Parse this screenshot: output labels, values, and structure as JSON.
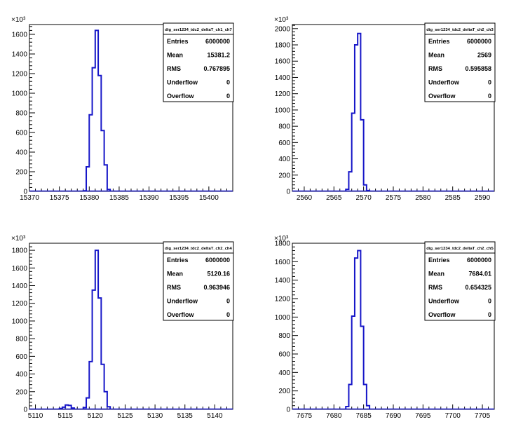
{
  "chart_data": [
    {
      "type": "histogram",
      "stats": {
        "title": "dig_ser1234_tdc2_deltaT_ch1_ch7",
        "rows": [
          {
            "label": "Entries",
            "value": "6000000"
          },
          {
            "label": "Mean",
            "value": "15381.2"
          },
          {
            "label": "RMS",
            "value": "0.767895"
          },
          {
            "label": "Underflow",
            "value": "0"
          },
          {
            "label": "Overflow",
            "value": "0"
          }
        ]
      },
      "xlim": [
        15370,
        15404
      ],
      "ylim": [
        0,
        1700
      ],
      "xticks": [
        15370,
        15375,
        15380,
        15385,
        15390,
        15395,
        15400
      ],
      "yticks": [
        0,
        200,
        400,
        600,
        800,
        1000,
        1200,
        1400,
        1600
      ],
      "ylabel_exponent": "×10³",
      "bins": [
        {
          "x0": 15379.0,
          "x1": 15379.5,
          "y": 5
        },
        {
          "x0": 15379.5,
          "x1": 15380.0,
          "y": 250
        },
        {
          "x0": 15380.0,
          "x1": 15380.5,
          "y": 780
        },
        {
          "x0": 15380.5,
          "x1": 15381.0,
          "y": 1260
        },
        {
          "x0": 15381.0,
          "x1": 15381.5,
          "y": 1640
        },
        {
          "x0": 15381.5,
          "x1": 15382.0,
          "y": 1180
        },
        {
          "x0": 15382.0,
          "x1": 15382.5,
          "y": 620
        },
        {
          "x0": 15382.5,
          "x1": 15383.0,
          "y": 270
        },
        {
          "x0": 15383.0,
          "x1": 15383.5,
          "y": 20
        }
      ]
    },
    {
      "type": "histogram",
      "stats": {
        "title": "dig_ser1234_tdc2_deltaT_ch2_ch3",
        "rows": [
          {
            "label": "Entries",
            "value": "6000000"
          },
          {
            "label": "Mean",
            "value": "2569"
          },
          {
            "label": "RMS",
            "value": "0.595858"
          },
          {
            "label": "Underflow",
            "value": "0"
          },
          {
            "label": "Overflow",
            "value": "0"
          }
        ]
      },
      "xlim": [
        2558,
        2592
      ],
      "ylim": [
        0,
        2050
      ],
      "xticks": [
        2560,
        2565,
        2570,
        2575,
        2580,
        2585,
        2590
      ],
      "yticks": [
        0,
        200,
        400,
        600,
        800,
        1000,
        1200,
        1400,
        1600,
        1800,
        2000
      ],
      "ylabel_exponent": "×10³",
      "bins": [
        {
          "x0": 2567.0,
          "x1": 2567.5,
          "y": 25
        },
        {
          "x0": 2567.5,
          "x1": 2568.0,
          "y": 240
        },
        {
          "x0": 2568.0,
          "x1": 2568.5,
          "y": 960
        },
        {
          "x0": 2568.5,
          "x1": 2569.0,
          "y": 1800
        },
        {
          "x0": 2569.0,
          "x1": 2569.5,
          "y": 1940
        },
        {
          "x0": 2569.5,
          "x1": 2570.0,
          "y": 880
        },
        {
          "x0": 2570.0,
          "x1": 2570.5,
          "y": 80
        },
        {
          "x0": 2570.5,
          "x1": 2571.0,
          "y": 10
        }
      ]
    },
    {
      "type": "histogram",
      "stats": {
        "title": "dig_ser1234_tdc2_deltaT_ch2_ch4",
        "rows": [
          {
            "label": "Entries",
            "value": "6000000"
          },
          {
            "label": "Mean",
            "value": "5120.16"
          },
          {
            "label": "RMS",
            "value": "0.963946"
          },
          {
            "label": "Underflow",
            "value": "0"
          },
          {
            "label": "Overflow",
            "value": "0"
          }
        ]
      },
      "xlim": [
        5109,
        5143
      ],
      "ylim": [
        0,
        1880
      ],
      "xticks": [
        5110,
        5115,
        5120,
        5125,
        5130,
        5135,
        5140
      ],
      "yticks": [
        0,
        200,
        400,
        600,
        800,
        1000,
        1200,
        1400,
        1600,
        1800
      ],
      "ylabel_exponent": "×10³",
      "bins": [
        {
          "x0": 5114.0,
          "x1": 5114.5,
          "y": 10
        },
        {
          "x0": 5114.5,
          "x1": 5115.0,
          "y": 25
        },
        {
          "x0": 5115.0,
          "x1": 5115.5,
          "y": 50
        },
        {
          "x0": 5115.5,
          "x1": 5116.0,
          "y": 45
        },
        {
          "x0": 5116.0,
          "x1": 5116.5,
          "y": 15
        },
        {
          "x0": 5118.0,
          "x1": 5118.5,
          "y": 20
        },
        {
          "x0": 5118.5,
          "x1": 5119.0,
          "y": 130
        },
        {
          "x0": 5119.0,
          "x1": 5119.5,
          "y": 540
        },
        {
          "x0": 5119.5,
          "x1": 5120.0,
          "y": 1350
        },
        {
          "x0": 5120.0,
          "x1": 5120.5,
          "y": 1800
        },
        {
          "x0": 5120.5,
          "x1": 5121.0,
          "y": 1260
        },
        {
          "x0": 5121.0,
          "x1": 5121.5,
          "y": 510
        },
        {
          "x0": 5121.5,
          "x1": 5122.0,
          "y": 200
        },
        {
          "x0": 5122.0,
          "x1": 5122.5,
          "y": 30
        }
      ]
    },
    {
      "type": "histogram",
      "stats": {
        "title": "dig_ser1234_tdc2_deltaT_ch2_ch5",
        "rows": [
          {
            "label": "Entries",
            "value": "6000000"
          },
          {
            "label": "Mean",
            "value": "7684.01"
          },
          {
            "label": "RMS",
            "value": "0.654325"
          },
          {
            "label": "Underflow",
            "value": "0"
          },
          {
            "label": "Overflow",
            "value": "0"
          }
        ]
      },
      "xlim": [
        7673,
        7707
      ],
      "ylim": [
        0,
        1800
      ],
      "xticks": [
        7675,
        7680,
        7685,
        7690,
        7695,
        7700,
        7705
      ],
      "yticks": [
        0,
        200,
        400,
        600,
        800,
        1000,
        1200,
        1400,
        1600,
        1800
      ],
      "ylabel_exponent": "×10³",
      "bins": [
        {
          "x0": 7682.0,
          "x1": 7682.5,
          "y": 30
        },
        {
          "x0": 7682.5,
          "x1": 7683.0,
          "y": 270
        },
        {
          "x0": 7683.0,
          "x1": 7683.5,
          "y": 1010
        },
        {
          "x0": 7683.5,
          "x1": 7684.0,
          "y": 1640
        },
        {
          "x0": 7684.0,
          "x1": 7684.5,
          "y": 1720
        },
        {
          "x0": 7684.5,
          "x1": 7685.0,
          "y": 900
        },
        {
          "x0": 7685.0,
          "x1": 7685.5,
          "y": 270
        },
        {
          "x0": 7685.5,
          "x1": 7686.0,
          "y": 40
        }
      ]
    }
  ]
}
